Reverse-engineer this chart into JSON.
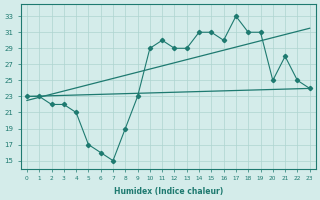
{
  "xlabel": "Humidex (Indice chaleur)",
  "bg_color": "#d4ecea",
  "grid_color": "#aed4d0",
  "line_color": "#1e7a70",
  "x_ticks": [
    0,
    1,
    2,
    3,
    4,
    5,
    6,
    7,
    8,
    9,
    10,
    11,
    12,
    13,
    14,
    15,
    16,
    17,
    18,
    19,
    20,
    21,
    22,
    23
  ],
  "y_ticks": [
    15,
    17,
    19,
    21,
    23,
    25,
    27,
    29,
    31,
    33
  ],
  "xlim": [
    -0.5,
    23.5
  ],
  "ylim": [
    14.0,
    34.5
  ],
  "raw_x": [
    0,
    1,
    2,
    3,
    4,
    5,
    6,
    7,
    8,
    9,
    10,
    11,
    12,
    13,
    14,
    15,
    16,
    17,
    18,
    19,
    20,
    21,
    22,
    23
  ],
  "raw_y": [
    23,
    23,
    22,
    22,
    21,
    17,
    16,
    15,
    19,
    23,
    29,
    30,
    29,
    29,
    31,
    31,
    30,
    33,
    31,
    31,
    25,
    28,
    25,
    24
  ],
  "trend1_x": [
    0,
    23
  ],
  "trend1_y": [
    22.5,
    31.5
  ],
  "trend2_x": [
    0,
    23
  ],
  "trend2_y": [
    23.0,
    24.0
  ]
}
